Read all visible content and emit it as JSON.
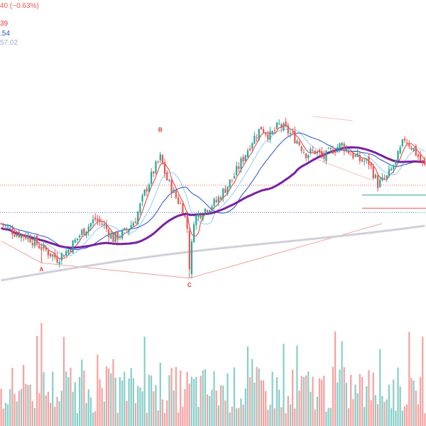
{
  "legend": {
    "price_change": "40 (−0.63%)",
    "ma1_value": "39",
    "ma2_value": ".54",
    "ma3_value": "57.02"
  },
  "pattern_labels": {
    "a": "A",
    "b": "B",
    "c": "C"
  },
  "colors": {
    "up": "#26a69a",
    "down": "#ef5350",
    "ema_fast": "#e53935",
    "ema_light": "#90caf9",
    "ema_blue": "#1e53c8",
    "ma_purple": "#7b1fa2",
    "ma_grey": "#d1cfd9",
    "hline_red": "#ef5350",
    "hline_blue": "#5c6bc0",
    "hline_green": "#26a69a",
    "pattern_line": "#f28b82"
  },
  "chart_data": {
    "type": "candlestick",
    "title": "",
    "xlabel": "",
    "ylabel": "",
    "ylim": [
      0,
      100
    ],
    "grid": false,
    "bars": 190,
    "anchors": [
      [
        0,
        40
      ],
      [
        6,
        36
      ],
      [
        12,
        34
      ],
      [
        18,
        29
      ],
      [
        25,
        24
      ],
      [
        30,
        28
      ],
      [
        36,
        36
      ],
      [
        42,
        42
      ],
      [
        46,
        39
      ],
      [
        50,
        33
      ],
      [
        55,
        36
      ],
      [
        60,
        42
      ],
      [
        64,
        54
      ],
      [
        68,
        64
      ],
      [
        71,
        70
      ],
      [
        74,
        60
      ],
      [
        78,
        52
      ],
      [
        81,
        47
      ],
      [
        83,
        38
      ],
      [
        84,
        18
      ],
      [
        86,
        42
      ],
      [
        90,
        46
      ],
      [
        96,
        50
      ],
      [
        100,
        56
      ],
      [
        104,
        62
      ],
      [
        108,
        70
      ],
      [
        112,
        78
      ],
      [
        116,
        84
      ],
      [
        120,
        80
      ],
      [
        124,
        85
      ],
      [
        128,
        82
      ],
      [
        132,
        78
      ],
      [
        136,
        72
      ],
      [
        140,
        73
      ],
      [
        144,
        70
      ],
      [
        148,
        74
      ],
      [
        152,
        76
      ],
      [
        156,
        72
      ],
      [
        160,
        69
      ],
      [
        164,
        68
      ],
      [
        168,
        58
      ],
      [
        172,
        61
      ],
      [
        176,
        68
      ],
      [
        180,
        79
      ],
      [
        184,
        74
      ],
      [
        188,
        67
      ],
      [
        189,
        66
      ]
    ],
    "patterns": [
      {
        "label": "A",
        "bar": 18,
        "price": 22
      },
      {
        "label": "B",
        "bar": 71,
        "price": 80
      },
      {
        "label": "C",
        "bar": 84,
        "price": 15
      }
    ],
    "horizontal_levels": [
      {
        "price": 57.5,
        "style": "dotted",
        "color": "hline_red"
      },
      {
        "price": 45.0,
        "style": "dotted",
        "color": "hline_blue"
      },
      {
        "price": 53.0,
        "style": "solid",
        "color": "hline_green",
        "from_bar": 161
      },
      {
        "price": 47.0,
        "style": "solid",
        "color": "hline_red",
        "from_bar": 161
      }
    ],
    "moving_averages": [
      {
        "color": "ema_fast",
        "period": 5
      },
      {
        "color": "ema_light",
        "period": 11
      },
      {
        "color": "ema_blue",
        "period": 22
      },
      {
        "color": "ma_purple",
        "period": 48
      },
      {
        "color": "ma_grey",
        "period": 130
      }
    ]
  }
}
